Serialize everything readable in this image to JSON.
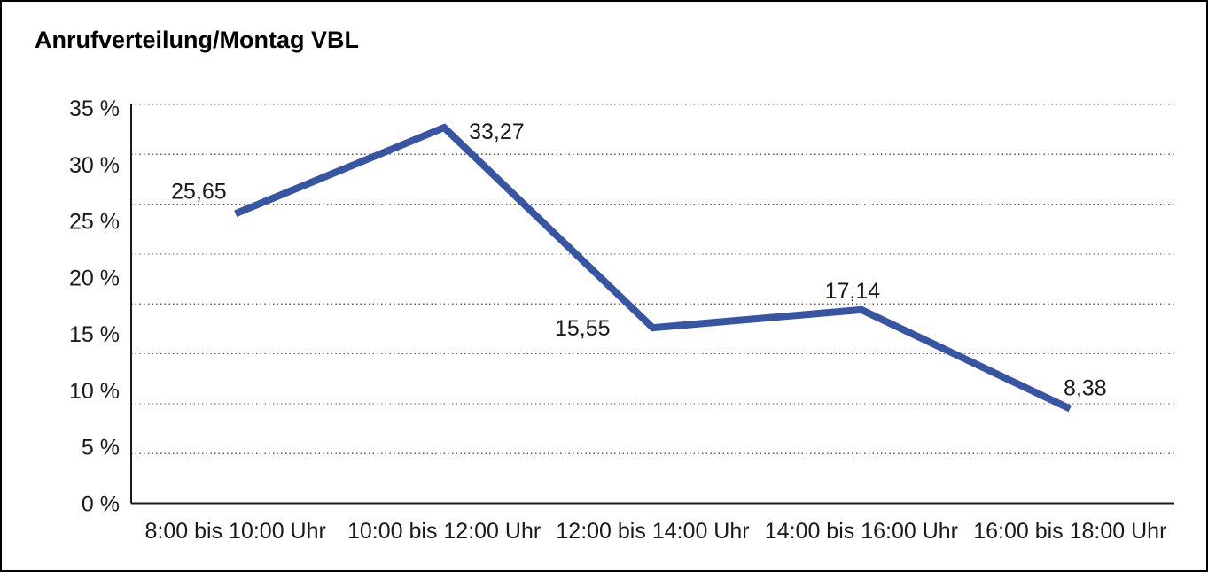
{
  "chart_data": {
    "type": "line",
    "title": "Anrufverteilung/Montag VBL",
    "categories": [
      "8:00 bis 10:00 Uhr",
      "10:00 bis 12:00 Uhr",
      "12:00 bis 14:00 Uhr",
      "14:00 bis 16:00 Uhr",
      "16:00 bis 18:00 Uhr"
    ],
    "values": [
      25.65,
      33.27,
      15.55,
      17.14,
      8.38
    ],
    "value_labels": [
      "25,65",
      "33,27",
      "15,55",
      "17,14",
      "8,38"
    ],
    "y_ticks": [
      {
        "value": 35,
        "label": "35 %"
      },
      {
        "value": 30,
        "label": "30 %"
      },
      {
        "value": 25,
        "label": "25 %"
      },
      {
        "value": 20,
        "label": "20 %"
      },
      {
        "value": 15,
        "label": "15 %"
      },
      {
        "value": 10,
        "label": "10 %"
      },
      {
        "value": 5,
        "label": "5 %"
      },
      {
        "value": 0,
        "label": "0 %"
      }
    ],
    "ylim": [
      0,
      35
    ],
    "xlabel": "",
    "ylabel": "",
    "grid": "horizontal-dotted",
    "legend": "none",
    "number_format": "decimal-comma",
    "colors": {
      "line": "#3755A3",
      "text": "#1A1A1A",
      "axis": "#1A1A1A",
      "gridline": "#595959",
      "background": "#FFFFFF",
      "frame_border": "#000000"
    }
  }
}
